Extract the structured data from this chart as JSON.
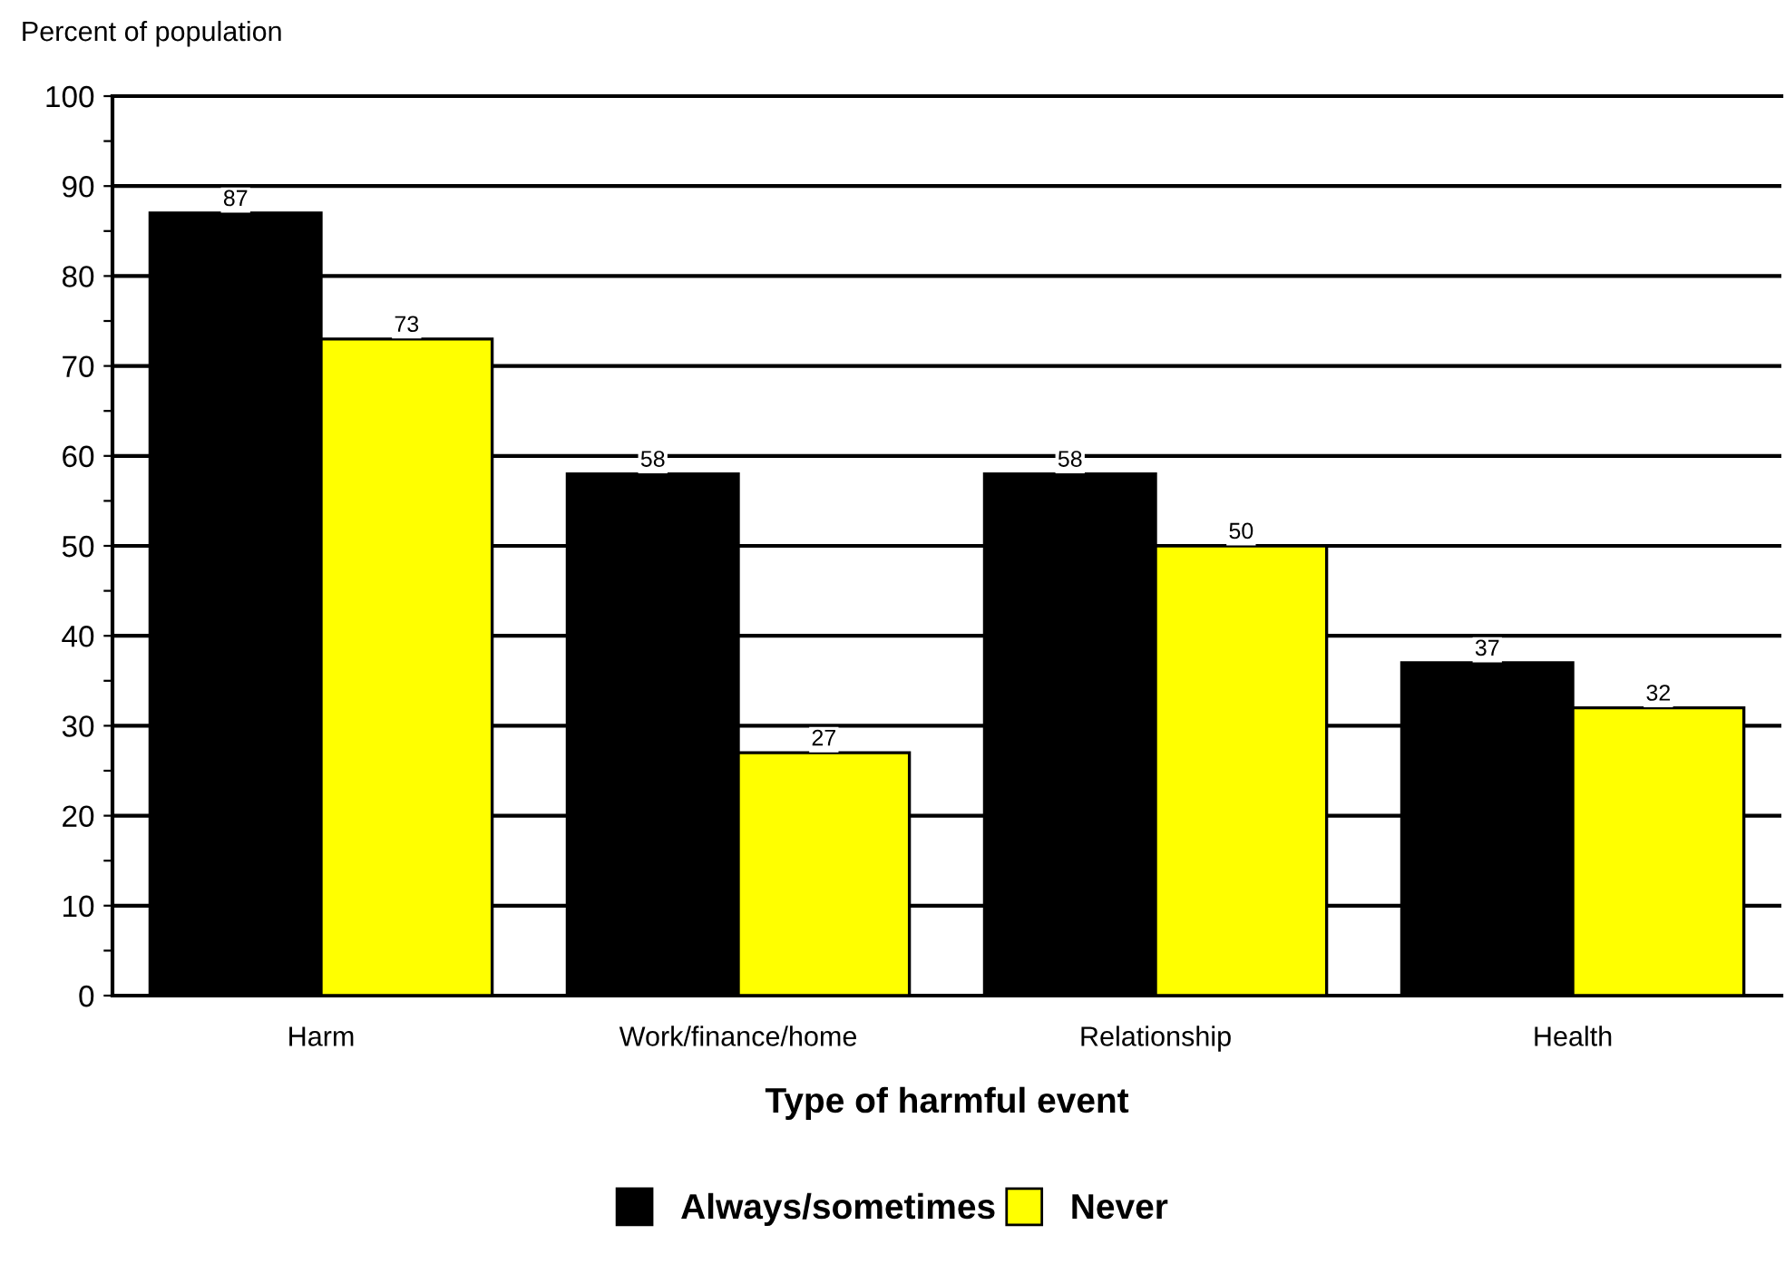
{
  "chart_data": {
    "type": "bar",
    "xlabel": "Type of harmful event",
    "ylabel": "Percent of population",
    "categories": [
      "Harm",
      "Work/finance/home",
      "Relationship",
      "Health"
    ],
    "series": [
      {
        "name": "Always/sometimes",
        "color": "#000000",
        "values": [
          87,
          58,
          58,
          37
        ]
      },
      {
        "name": "Never",
        "color": "#ffff00",
        "values": [
          73,
          27,
          50,
          32
        ]
      }
    ],
    "ylim": [
      0,
      100
    ],
    "yticks": [
      0,
      {
        "value": 5,
        "label": null
      },
      10,
      {
        "value": 15,
        "label": null
      },
      20,
      {
        "value": 25,
        "label": null
      },
      30,
      {
        "value": 35,
        "label": null
      },
      40,
      {
        "value": 45,
        "label": null
      },
      50,
      {
        "value": 55,
        "label": null
      },
      60,
      {
        "value": 65,
        "label": null
      },
      70,
      {
        "value": 75,
        "label": null
      },
      80,
      {
        "value": 85,
        "label": null
      },
      90,
      {
        "value": 95,
        "label": null
      },
      100
    ],
    "grid": "y",
    "legend": "bottom",
    "data_labels": true
  }
}
